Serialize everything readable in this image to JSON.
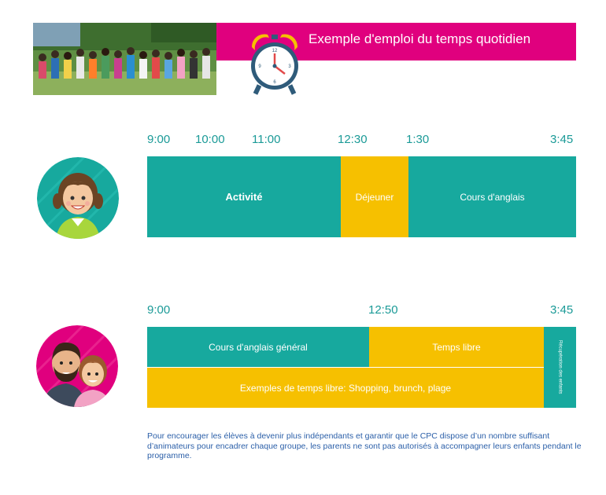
{
  "header": {
    "title": "Exemple d'emploi du temps quotidien"
  },
  "colors": {
    "brand_pink": "#e0007e",
    "teal": "#17a99e",
    "gold": "#f6c000",
    "time_label": "#1a9a97",
    "note_text": "#2b5fa8"
  },
  "schedule_student": {
    "times": [
      "9:00",
      "10:00",
      "11:00",
      "12:30",
      "1:30",
      "3:45"
    ],
    "blocks": [
      "Activité",
      "Déjeuner",
      "Cours d'anglais"
    ]
  },
  "schedule_parent": {
    "times": [
      "9:00",
      "12:50",
      "3:45"
    ],
    "blocks": [
      "Cours d'anglais général",
      "Temps libre",
      "Exemples de temps libre: Shopping, brunch, plage",
      "Récupération des enfants"
    ]
  },
  "note": "Pour encourager les élèves à devenir plus indépendants et garantir que le CPC dispose d’un nombre suffisant d’animateurs pour encadrer chaque groupe, les parents ne sont pas autorisés à accompagner leurs enfants pendant le programme.",
  "icons": [
    "group-photo",
    "alarm-clock-icon",
    "student-avatar",
    "parents-avatar"
  ]
}
